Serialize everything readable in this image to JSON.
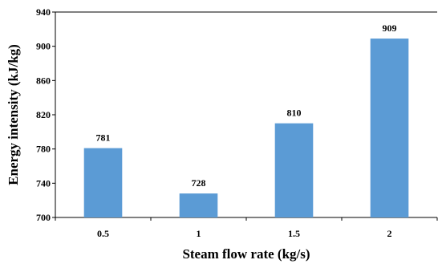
{
  "chart_data": {
    "type": "bar",
    "xlabel": "Steam flow rate (kg/s)",
    "ylabel": "Energy intensity (kJ/kg)",
    "categories": [
      "0.5",
      "1",
      "1.5",
      "2"
    ],
    "values": [
      781,
      728,
      810,
      909
    ],
    "data_labels": [
      "781",
      "728",
      "810",
      "909"
    ],
    "ylim": [
      700,
      940
    ],
    "yticks": [
      700,
      740,
      780,
      820,
      860,
      900,
      940
    ],
    "ytick_labels": [
      "700",
      "740",
      "780",
      "820",
      "860",
      "900",
      "940"
    ],
    "grid": false,
    "legend": "none",
    "bar_color": "#5b9bd5"
  }
}
